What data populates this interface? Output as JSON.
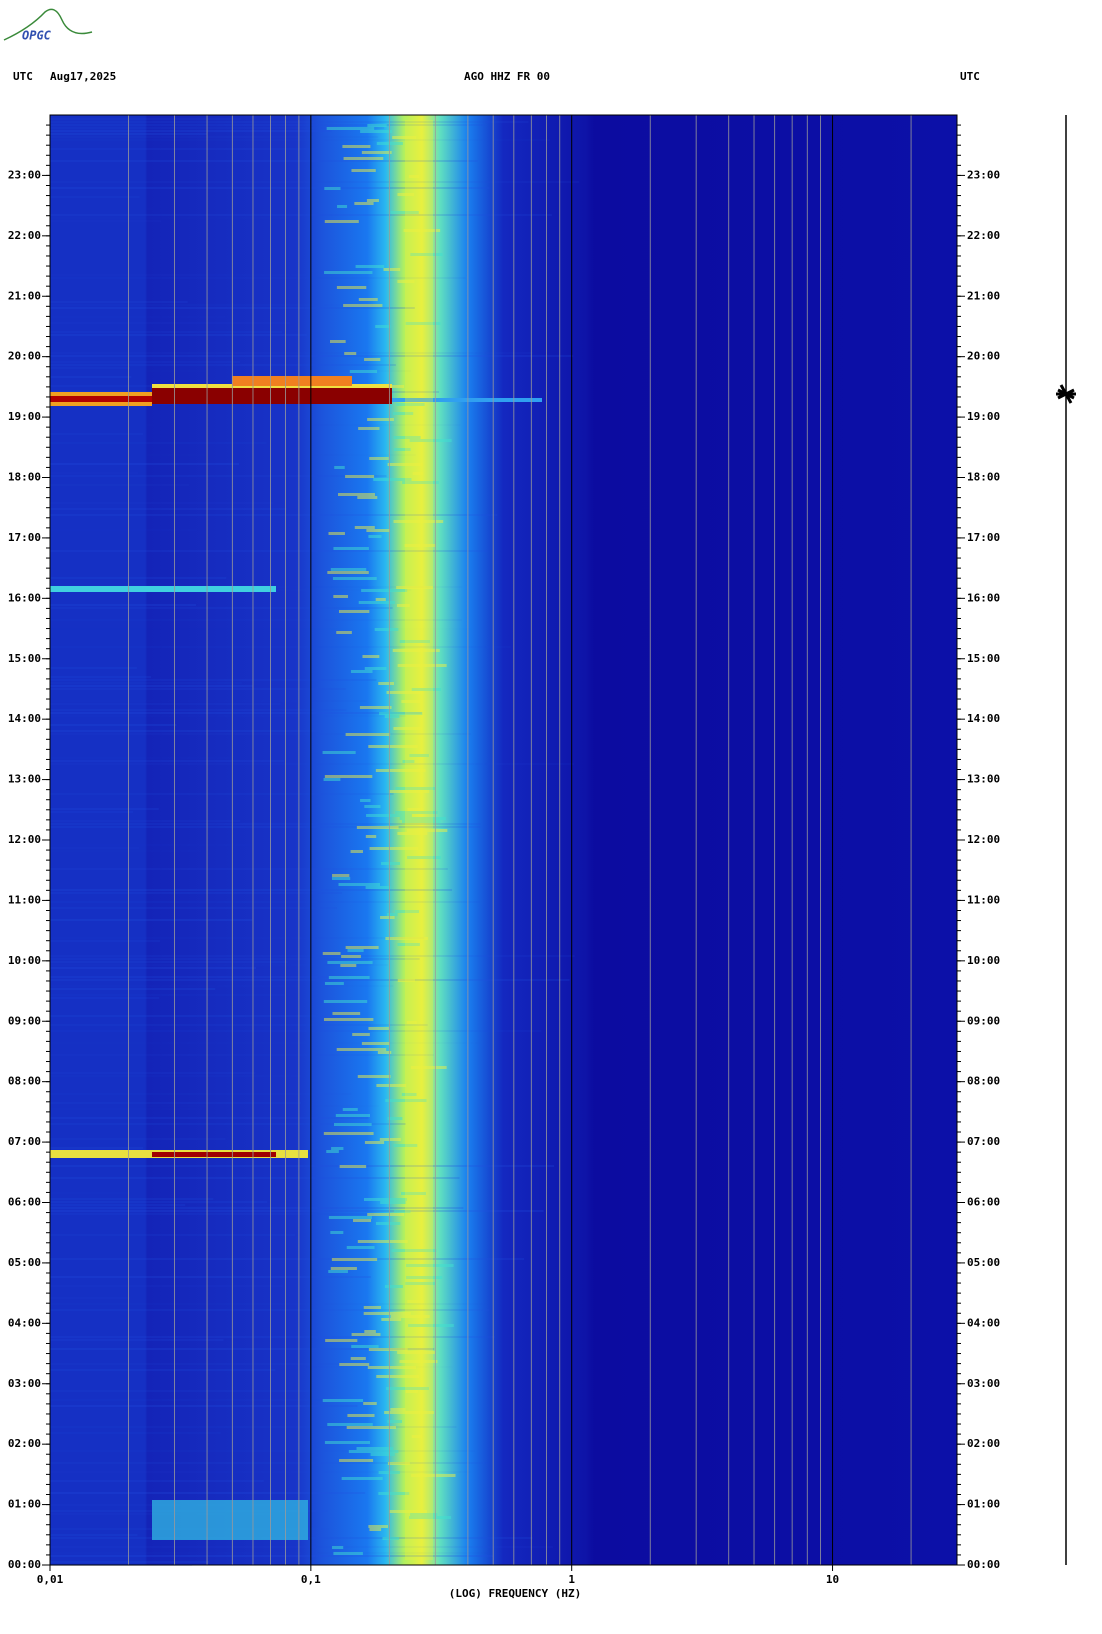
{
  "logo": "OPGC",
  "chart_data": {
    "type": "spectrogram",
    "title": "AGO HHZ FR 00",
    "left_label": "UTC",
    "date": "Aug17,2025",
    "right_label": "UTC",
    "xlabel": "(LOG) FREQUENCY (HZ)",
    "log_x": true,
    "xlim": [
      0.01,
      30
    ],
    "xticks": [
      {
        "value": 0.01,
        "label": "0,01"
      },
      {
        "value": 0.1,
        "label": "0,1"
      },
      1,
      10
    ],
    "ylim": [
      0,
      24
    ],
    "yticks": [
      {
        "value": 0,
        "label": "00:00"
      },
      {
        "value": 1,
        "label": "01:00"
      },
      {
        "value": 2,
        "label": "02:00"
      },
      {
        "value": 3,
        "label": "03:00"
      },
      {
        "value": 4,
        "label": "04:00"
      },
      {
        "value": 5,
        "label": "05:00"
      },
      {
        "value": 6,
        "label": "06:00"
      },
      {
        "value": 7,
        "label": "07:00"
      },
      {
        "value": 8,
        "label": "08:00"
      },
      {
        "value": 9,
        "label": "09:00"
      },
      {
        "value": 10,
        "label": "10:00"
      },
      {
        "value": 11,
        "label": "11:00"
      },
      {
        "value": 12,
        "label": "12:00"
      },
      {
        "value": 13,
        "label": "13:00"
      },
      {
        "value": 14,
        "label": "14:00"
      },
      {
        "value": 15,
        "label": "15:00"
      },
      {
        "value": 16,
        "label": "16:00"
      },
      {
        "value": 17,
        "label": "17:00"
      },
      {
        "value": 18,
        "label": "18:00"
      },
      {
        "value": 19,
        "label": "19:00"
      },
      {
        "value": 20,
        "label": "20:00"
      },
      {
        "value": 21,
        "label": "21:00"
      },
      {
        "value": 22,
        "label": "22:00"
      },
      {
        "value": 23,
        "label": "23:00"
      }
    ]
  }
}
